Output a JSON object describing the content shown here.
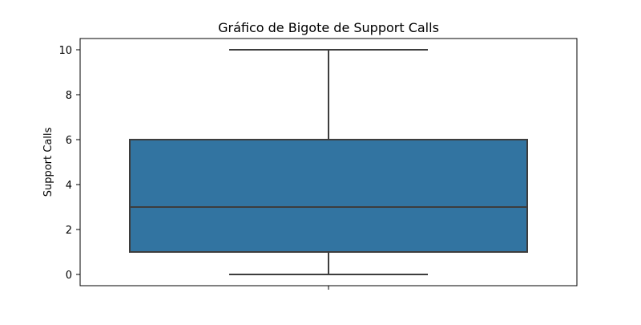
{
  "chart_data": {
    "type": "box",
    "title": "Gráfico de Bigote de Support Calls",
    "xlabel": "",
    "ylabel": "Support Calls",
    "ylim": [
      -0.5,
      10.5
    ],
    "yticks": [
      0,
      2,
      4,
      6,
      8,
      10
    ],
    "grid": false,
    "series": [
      {
        "whisker_low": 0,
        "q1": 1,
        "median": 3,
        "q3": 6,
        "whisker_high": 10
      }
    ],
    "colors": {
      "box_fill": "#3274a1",
      "line": "#3d3d3d",
      "frame": "#000000"
    }
  }
}
